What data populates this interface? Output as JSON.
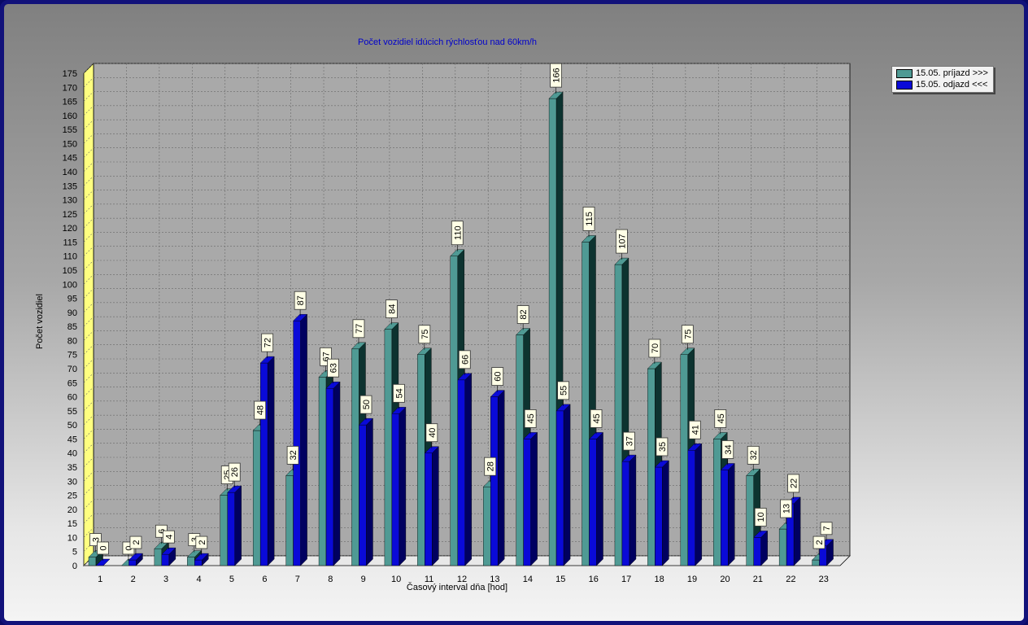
{
  "chart_data": {
    "type": "bar",
    "title": "Počet vozidiel idúcich rýchlosťou nad 60km/h",
    "xlabel": "Časový interval dňa [hod]",
    "ylabel": "Počet vozidiel",
    "ylim": [
      0,
      175
    ],
    "ytick_step": 5,
    "grid": true,
    "legend_position": "top-right",
    "categories": [
      "1",
      "2",
      "3",
      "4",
      "5",
      "6",
      "7",
      "8",
      "9",
      "10",
      "11",
      "12",
      "13",
      "14",
      "15",
      "16",
      "17",
      "18",
      "19",
      "20",
      "21",
      "22",
      "23"
    ],
    "series": [
      {
        "name": "15.05. príjazd >>>",
        "color": "#4f9a94",
        "dark_color": "#0d3330",
        "values": [
          3,
          0,
          6,
          3,
          25,
          48,
          32,
          67,
          77,
          84,
          75,
          110,
          28,
          82,
          166,
          115,
          107,
          70,
          75,
          45,
          32,
          13,
          2
        ]
      },
      {
        "name": "15.05. odjazd <<<",
        "color": "#0a0ad8",
        "dark_color": "#000060",
        "values": [
          0,
          2,
          4,
          2,
          26,
          72,
          87,
          63,
          50,
          54,
          40,
          66,
          60,
          45,
          55,
          45,
          37,
          35,
          41,
          34,
          10,
          22,
          7
        ]
      }
    ]
  }
}
